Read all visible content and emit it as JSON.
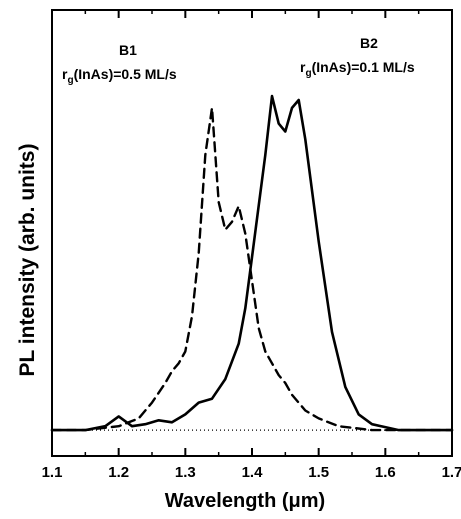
{
  "chart_data": {
    "type": "line",
    "xlabel": "Wavelength (μm)",
    "ylabel": "PL intensity (arb. units)",
    "xlim": [
      1.1,
      1.7
    ],
    "ylim": [
      0,
      1.0
    ],
    "x_ticks": [
      "1.1",
      "1.2",
      "1.3",
      "1.4",
      "1.5",
      "1.6",
      "1.7"
    ],
    "y_ticks_labeled": false,
    "legend": "none",
    "grid": false,
    "annotations": [
      {
        "id": "b1",
        "label": "B1",
        "rate": "r",
        "subscript": "g",
        "rate_text": "(InAs)=0.5 ML/s"
      },
      {
        "id": "b2",
        "label": "B2",
        "rate": "r",
        "subscript": "g",
        "rate_text": "(InAs)=0.1 ML/s"
      }
    ],
    "series": [
      {
        "style": "dashed",
        "points": [
          [
            1.1,
            0.02
          ],
          [
            1.15,
            0.02
          ],
          [
            1.2,
            0.03
          ],
          [
            1.23,
            0.05
          ],
          [
            1.25,
            0.09
          ],
          [
            1.27,
            0.14
          ],
          [
            1.28,
            0.17
          ],
          [
            1.29,
            0.19
          ],
          [
            1.3,
            0.22
          ],
          [
            1.31,
            0.31
          ],
          [
            1.32,
            0.47
          ],
          [
            1.33,
            0.72
          ],
          [
            1.34,
            0.84
          ],
          [
            1.35,
            0.6
          ],
          [
            1.36,
            0.53
          ],
          [
            1.37,
            0.55
          ],
          [
            1.38,
            0.59
          ],
          [
            1.39,
            0.52
          ],
          [
            1.4,
            0.4
          ],
          [
            1.41,
            0.28
          ],
          [
            1.42,
            0.22
          ],
          [
            1.43,
            0.19
          ],
          [
            1.44,
            0.16
          ],
          [
            1.45,
            0.14
          ],
          [
            1.46,
            0.11
          ],
          [
            1.48,
            0.07
          ],
          [
            1.5,
            0.05
          ],
          [
            1.53,
            0.03
          ],
          [
            1.58,
            0.02
          ],
          [
            1.7,
            0.02
          ]
        ]
      },
      {
        "style": "solid",
        "points": [
          [
            1.1,
            0.02
          ],
          [
            1.15,
            0.02
          ],
          [
            1.18,
            0.03
          ],
          [
            1.2,
            0.055
          ],
          [
            1.22,
            0.03
          ],
          [
            1.24,
            0.035
          ],
          [
            1.26,
            0.045
          ],
          [
            1.28,
            0.04
          ],
          [
            1.3,
            0.06
          ],
          [
            1.32,
            0.09
          ],
          [
            1.34,
            0.1
          ],
          [
            1.36,
            0.15
          ],
          [
            1.38,
            0.24
          ],
          [
            1.39,
            0.33
          ],
          [
            1.4,
            0.46
          ],
          [
            1.42,
            0.72
          ],
          [
            1.43,
            0.87
          ],
          [
            1.44,
            0.8
          ],
          [
            1.45,
            0.78
          ],
          [
            1.46,
            0.84
          ],
          [
            1.47,
            0.86
          ],
          [
            1.48,
            0.76
          ],
          [
            1.5,
            0.5
          ],
          [
            1.52,
            0.27
          ],
          [
            1.54,
            0.13
          ],
          [
            1.56,
            0.06
          ],
          [
            1.58,
            0.035
          ],
          [
            1.62,
            0.02
          ],
          [
            1.7,
            0.02
          ]
        ]
      }
    ]
  }
}
